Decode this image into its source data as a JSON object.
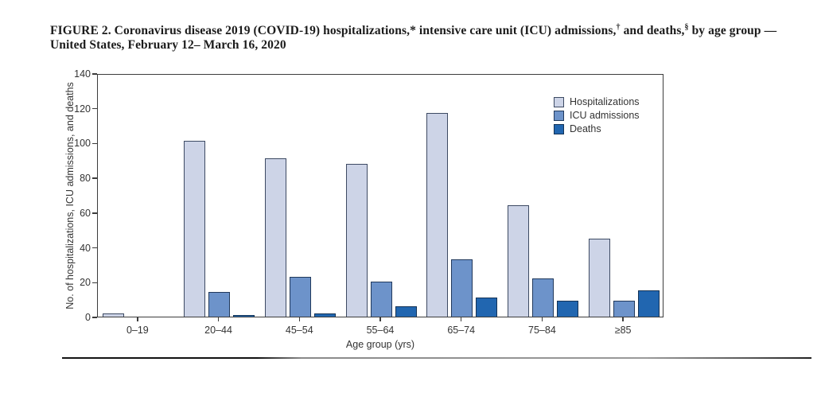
{
  "title": {
    "seg1": "FIGURE 2. Coronavirus disease 2019 (COVID-19) hospitalizations,",
    "sup1": "*",
    "seg2": " intensive care unit (ICU) admissions,",
    "sup2": "†",
    "seg3": " and deaths,",
    "sup3": "§",
    "seg4": " by age group —",
    "line2": "United States, February 12– March 16, 2020"
  },
  "chart_data": {
    "type": "bar",
    "categories": [
      "0–19",
      "20–44",
      "45–54",
      "55–64",
      "65–74",
      "75–84",
      "≥85"
    ],
    "series": [
      {
        "name": "Hospitalizations",
        "fill": "#cdd4e7",
        "border": "#3d4a63",
        "values": [
          2,
          101,
          91,
          88,
          117,
          64,
          45
        ]
      },
      {
        "name": "ICU admissions",
        "fill": "#6d93ca",
        "border": "#21395c",
        "values": [
          0,
          14,
          23,
          20,
          33,
          22,
          9
        ]
      },
      {
        "name": "Deaths",
        "fill": "#2166b0",
        "border": "#143356",
        "values": [
          0,
          1,
          2,
          6,
          11,
          9,
          15
        ]
      }
    ],
    "title": "",
    "xlabel": "Age group (yrs)",
    "ylabel": "No. of hospitalizations, ICU admissions, and deaths",
    "ylim": [
      0,
      140
    ],
    "ytick_step": 20,
    "legend_position": "top-right",
    "grid": false
  },
  "colors": {
    "axis": "#3c3c3c",
    "text": "#333333",
    "title_text": "#1b1b1b"
  }
}
